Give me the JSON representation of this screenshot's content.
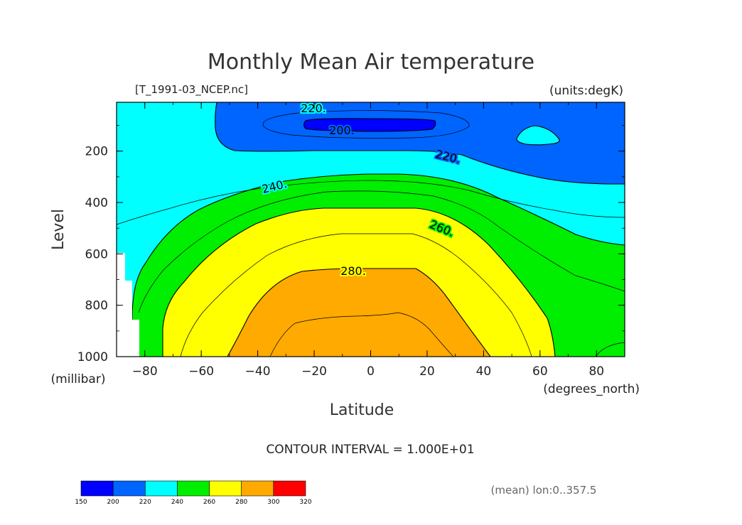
{
  "chart_data": {
    "type": "filled-contour",
    "title": "Monthly Mean Air temperature",
    "file_label": "[T_1991-03_NCEP.nc]",
    "units_label": "(units:degK)",
    "xlabel": "Latitude",
    "x_units": "(degrees_north)",
    "ylabel": "Level",
    "y_units": "(millibar)",
    "xlim": [
      -90,
      90
    ],
    "ylim": [
      1000,
      10
    ],
    "x_ticks": [
      "-80",
      "-60",
      "-40",
      "-20",
      "0",
      "20",
      "40",
      "60",
      "80"
    ],
    "y_ticks": [
      "200",
      "400",
      "600",
      "800",
      "1000"
    ],
    "contour_interval_label": "CONTOUR INTERVAL = 1.000E+01",
    "contour_labels": [
      "220.",
      "200.",
      "220.",
      "240.",
      "260.",
      "280."
    ],
    "mean_label": "(mean) lon:0..357.5",
    "levels": [
      150,
      200,
      220,
      240,
      260,
      280,
      300,
      320
    ],
    "colorbar_labels": [
      "150",
      "200",
      "220",
      "240",
      "260",
      "280",
      "300",
      "320"
    ],
    "colors": [
      "#0000ff",
      "#0064ff",
      "#00ffff",
      "#00ee00",
      "#ffff00",
      "#ffaa00",
      "#ff0000"
    ]
  }
}
